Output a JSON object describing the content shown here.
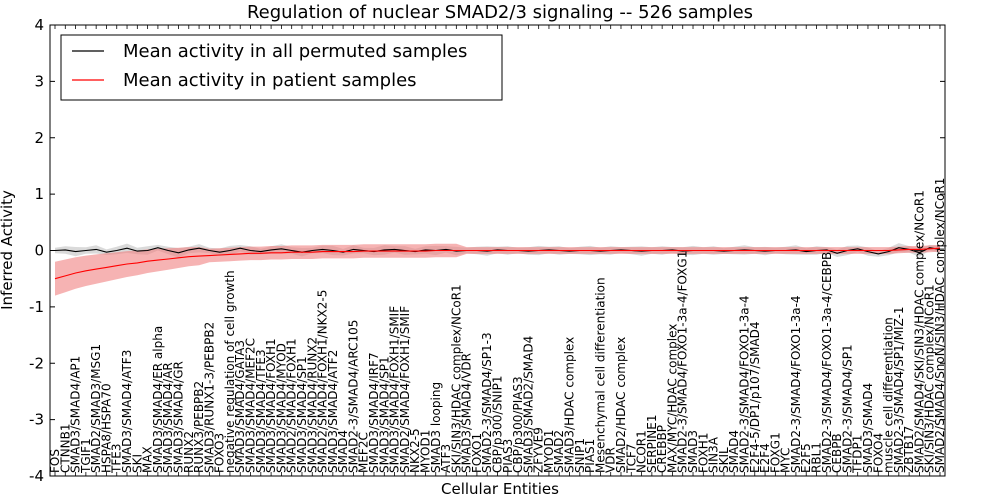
{
  "chart_data": {
    "type": "line",
    "title": "Regulation of nuclear SMAD2/3 signaling -- 526 samples",
    "xlabel": "Cellular Entities",
    "ylabel": "Inferred Activity",
    "ylim": [
      -4,
      4
    ],
    "yticks": [
      -4,
      -3,
      -2,
      -1,
      0,
      1,
      2,
      3,
      4
    ],
    "grid": false,
    "legend_position": "top-left",
    "colors": {
      "permuted": "#000000",
      "patient": "#ff0000",
      "patient_band": "#f08080",
      "permuted_band": "#bbbbbb"
    },
    "categories": [
      "FOS",
      "CTNNB1",
      "SMAD3/SMAD4/AP1",
      "TGIF1",
      "SMAD2/SMAD3/MSG1",
      "HSPA8/HSPA70",
      "TFE3",
      "SMAD3/SMAD4/ATF3",
      "SKI",
      "MAX",
      "SMAD3/SMAD4/ER alpha",
      "SMAD3/SMAD4/AR",
      "SMAD3/SMAD4/GR",
      "RUNX2",
      "RUNX3/PEBPB2",
      "SMAD3/RUNX1-3/PEBPB2",
      "FOXO3",
      "negative regulation of cell growth",
      "SMAD3/SMAD4/GATA3",
      "SMAD3/SMAD4/MEF2C",
      "SMAD3/SMAD4/TFE3",
      "SMAD3/SMAD4/FOXH1",
      "SMAD3/SMAD4/MYOD",
      "SMAD2/SMAD4/FOXH1",
      "SMAD3/SMAD4/SP1",
      "SMAD3/SMAD4/RUNX2",
      "SMAD2/SMAD4/FOXH1/NKX2-5",
      "SMAD3/SMAD4/ATF2",
      "SMAD4",
      "SMAD2-3/SMAD4/ARC105",
      "MEF2C",
      "SMAD3/SMAD4/IRF7",
      "SMAD3/SMAD4/SP1",
      "SMAD3/SMAD4/FOXH1/SMIF",
      "SMAD2/SMAD4/FOXH1/SMIF",
      "NKX2-5",
      "MYOD1",
      "SMAD3 looping",
      "ATF3",
      "SKI/SIN3/HDAC complex/NCoR1",
      "SMAD3/SMAD4/VDR",
      "FOXO1",
      "SMAD2-3/SMAD4/SP1-3",
      "CBP/p300/SNIP1",
      "PIAS3",
      "CBP/p300/PIAS3",
      "SMAD3/SMAD2/SMAD4",
      "ZFYVE9",
      "MYOD1",
      "SMAD2",
      "SMAD3/HDAC complex",
      "SNIP1",
      "PIAS1",
      "Mesenchymal cell differentiation",
      "VDR",
      "SMAD2/HDAC complex",
      "TCF7",
      "NCOR1",
      "SERPINE1",
      "CREBBP",
      "MAX/MYC/HDAC complex",
      "SMAD2-3/SMAD4/FOXO1-3a-4/FOXG1",
      "SMAD3",
      "FOXH1",
      "SIN3A",
      "SKIL",
      "SMAD4",
      "SMAD2-3/SMAD4/FOXO1-3a-4",
      "E2F4-5/DP1/p107/SMAD4",
      "E2F4",
      "FOXG1",
      "MYC",
      "SMAD2-3/SMAD4/FOXO1-3a-4",
      "E2F5",
      "RBL1",
      "SMAD2-3/SMAD4/FOXO1-3a-4/CEBPB",
      "CEBPB",
      "SMAD2-3/SMAD4/SP1",
      "TFDP1",
      "SMAD3/SMAD4",
      "FOXO4",
      "muscle cell differentiation",
      "SMAD2-3/SMAD4/SP1/MIZ-1",
      "ZBTB17",
      "SMAD2/SMAD4/SKI/SIN3/HDAC complex/NCoR1",
      "SKI/SIN3/HDAC complex/NCoR1",
      "SMAD2/SMAD4/SnoN/SIN3/HDAC complex/NCoR1"
    ],
    "series": [
      {
        "name": "Mean activity in all permuted samples",
        "values": [
          0.0,
          0.01,
          -0.02,
          0.0,
          0.02,
          -0.03,
          0.0,
          0.04,
          -0.01,
          0.0,
          0.05,
          0.0,
          -0.04,
          0.01,
          0.04,
          0.0,
          -0.03,
          0.0,
          0.04,
          0.0,
          -0.02,
          0.01,
          0.03,
          0.0,
          -0.03,
          0.0,
          0.02,
          0.0,
          -0.03,
          0.02,
          0.0,
          -0.02,
          0.01,
          0.02,
          0.0,
          -0.02,
          0.01,
          0.0,
          0.02,
          -0.01,
          0.0,
          0.0,
          -0.01,
          0.01,
          0.0,
          0.0,
          -0.01,
          0.0,
          0.01,
          0.0,
          -0.01,
          0.0,
          0.0,
          -0.01,
          0.0,
          0.01,
          0.0,
          -0.01,
          0.0,
          0.0,
          0.01,
          -0.01,
          0.0,
          0.0,
          0.0,
          -0.01,
          0.0,
          0.01,
          0.0,
          -0.01,
          0.0,
          0.0,
          0.01,
          -0.02,
          0.0,
          0.01,
          -0.05,
          0.0,
          0.03,
          -0.02,
          -0.06,
          -0.02,
          0.05,
          0.02,
          -0.04,
          0.05,
          0.02
        ]
      },
      {
        "name": "Mean activity in patient samples",
        "values": [
          -0.5,
          -0.45,
          -0.4,
          -0.36,
          -0.33,
          -0.3,
          -0.27,
          -0.24,
          -0.22,
          -0.19,
          -0.17,
          -0.15,
          -0.13,
          -0.11,
          -0.1,
          -0.09,
          -0.08,
          -0.07,
          -0.06,
          -0.05,
          -0.05,
          -0.04,
          -0.04,
          -0.03,
          -0.03,
          -0.03,
          -0.02,
          -0.02,
          -0.02,
          -0.02,
          -0.01,
          -0.01,
          -0.01,
          -0.01,
          -0.01,
          -0.01,
          -0.01,
          0.0,
          0.0,
          0.0,
          0.0,
          0.0,
          0.0,
          0.0,
          0.0,
          0.0,
          0.0,
          0.0,
          0.0,
          0.0,
          0.0,
          0.0,
          0.0,
          0.0,
          0.0,
          0.0,
          0.0,
          0.0,
          0.0,
          0.0,
          0.0,
          0.0,
          0.0,
          0.0,
          0.0,
          0.0,
          0.0,
          0.0,
          0.0,
          0.0,
          0.0,
          0.0,
          0.0,
          0.0,
          0.0,
          0.0,
          0.0,
          0.0,
          0.0,
          0.0,
          0.0,
          0.0,
          0.01,
          0.02,
          0.02,
          0.03,
          0.04
        ]
      }
    ],
    "legend": [
      "Mean activity in all permuted samples",
      "Mean activity in patient samples"
    ]
  }
}
